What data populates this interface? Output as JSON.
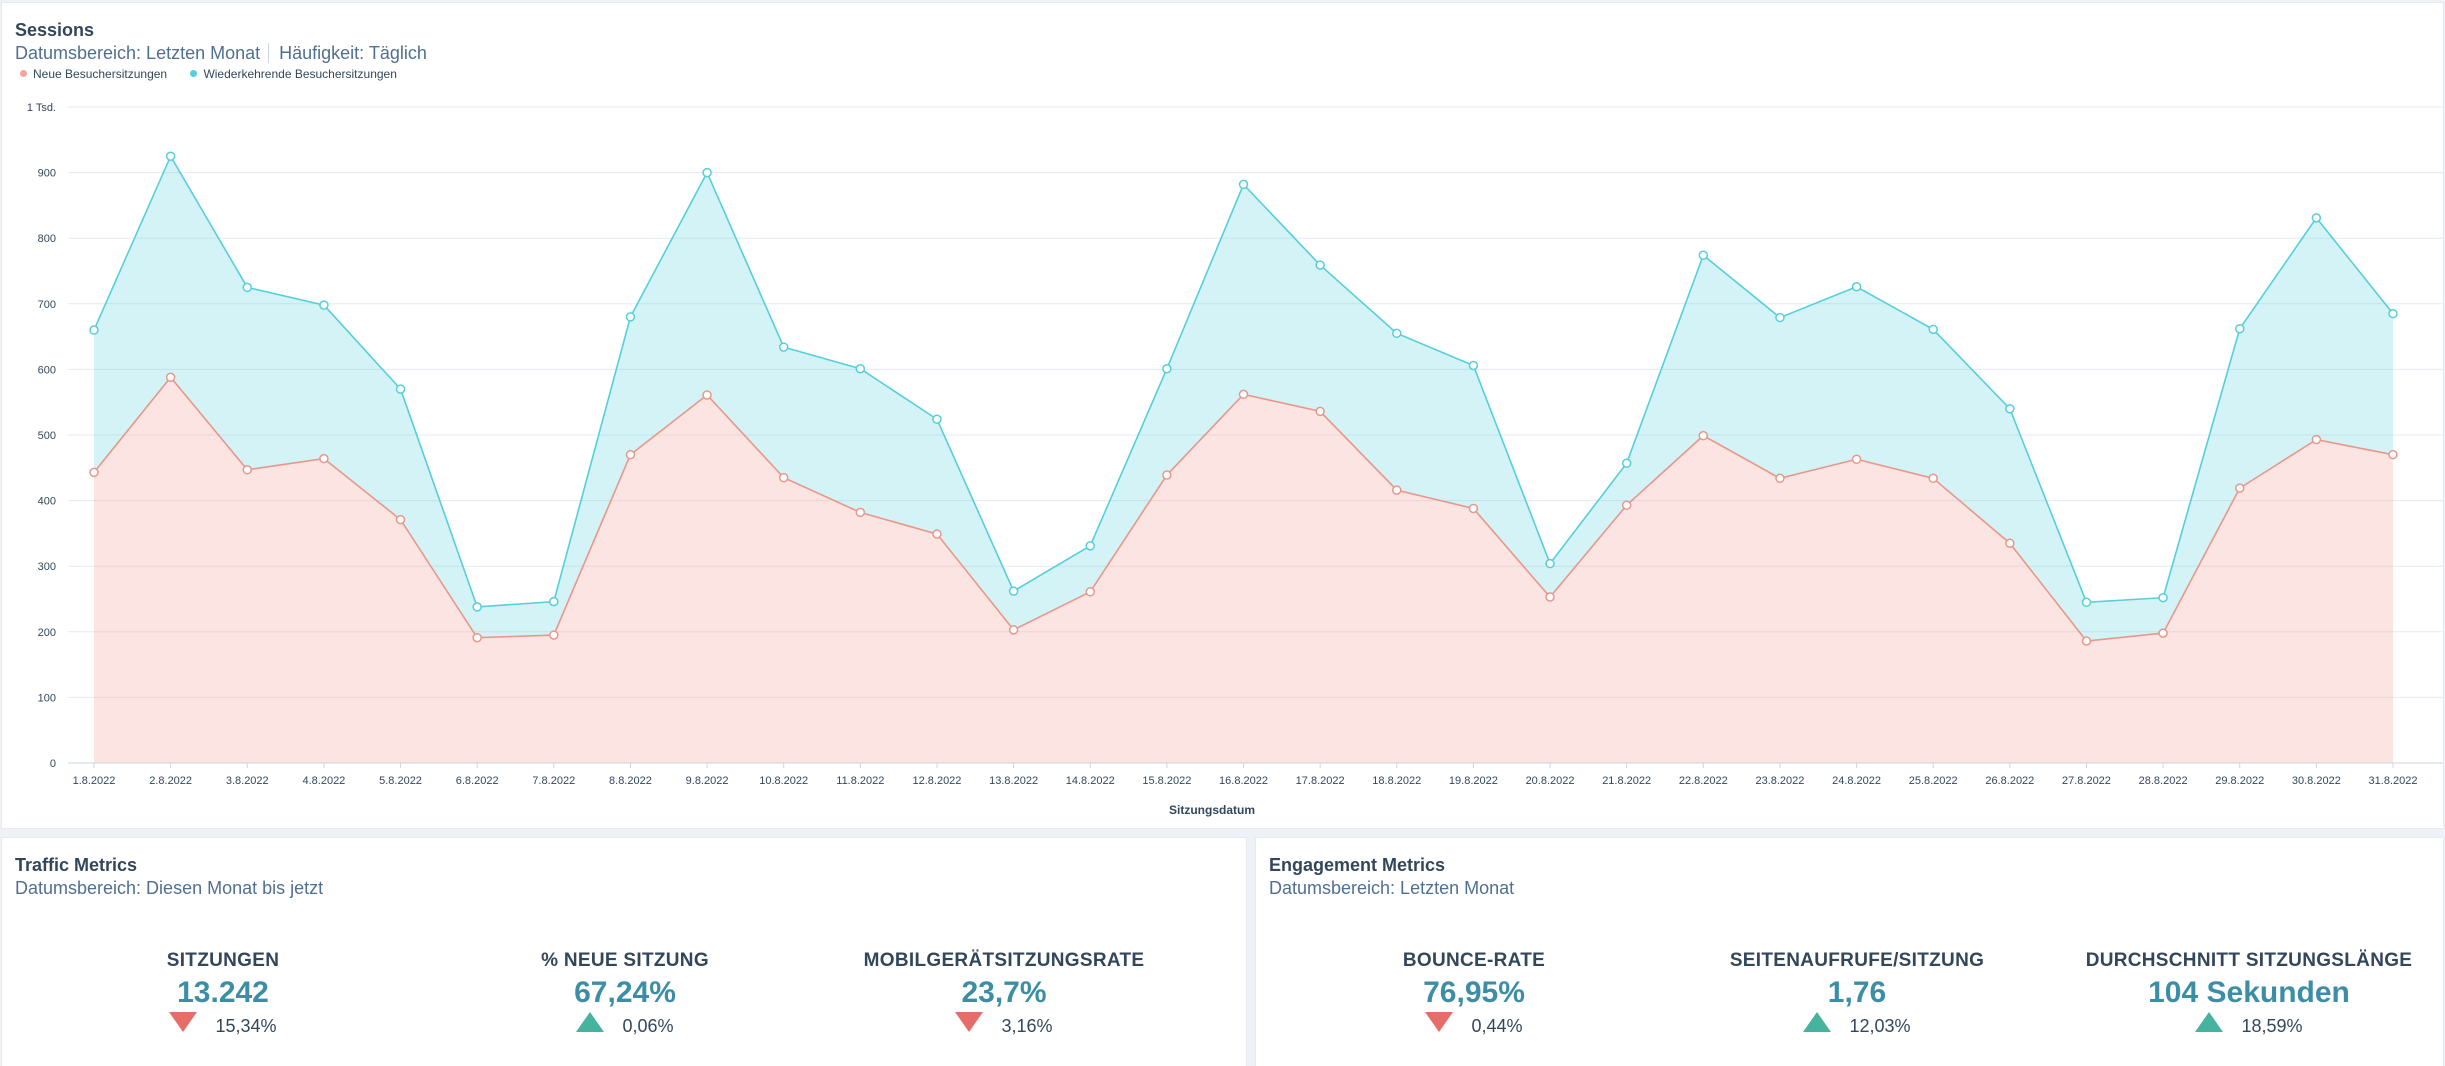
{
  "colors": {
    "new": "#f2a79c",
    "returning": "#55cfdb",
    "accent": "#3b8ea5",
    "down": "#e66e6a",
    "up": "#45b39d"
  },
  "sessions_card": {
    "title": "Sessions",
    "date_range": "Datumsbereich: Letzten Monat",
    "frequency": "Häufigkeit: Täglich"
  },
  "chart_data": {
    "type": "area",
    "stacked": true,
    "xlabel": "Sitzungsdatum",
    "ylabel": "",
    "ylim": [
      0,
      1000
    ],
    "yticks": [
      0,
      100,
      200,
      300,
      400,
      500,
      600,
      700,
      800,
      900,
      1000
    ],
    "ytick_labels": [
      "0",
      "100",
      "200",
      "300",
      "400",
      "500",
      "600",
      "700",
      "800",
      "900",
      "1 Tsd."
    ],
    "grid": true,
    "legend_position": "top-left",
    "categories": [
      "1.8.2022",
      "2.8.2022",
      "3.8.2022",
      "4.8.2022",
      "5.8.2022",
      "6.8.2022",
      "7.8.2022",
      "8.8.2022",
      "9.8.2022",
      "10.8.2022",
      "11.8.2022",
      "12.8.2022",
      "13.8.2022",
      "14.8.2022",
      "15.8.2022",
      "16.8.2022",
      "17.8.2022",
      "18.8.2022",
      "19.8.2022",
      "20.8.2022",
      "21.8.2022",
      "22.8.2022",
      "23.8.2022",
      "24.8.2022",
      "25.8.2022",
      "26.8.2022",
      "27.8.2022",
      "28.8.2022",
      "29.8.2022",
      "30.8.2022",
      "31.8.2022"
    ],
    "series": [
      {
        "name": "Neue Besuchersitzungen",
        "values": [
          443,
          588,
          447,
          464,
          371,
          191,
          195,
          470,
          561,
          435,
          382,
          349,
          203,
          261,
          439,
          562,
          536,
          416,
          388,
          253,
          393,
          499,
          434,
          463,
          434,
          335,
          186,
          198,
          419,
          493,
          470
        ]
      },
      {
        "name": "Wiederkehrende Besuchersitzungen",
        "cumulative_values": [
          660,
          925,
          725,
          698,
          570,
          238,
          246,
          680,
          900,
          634,
          601,
          524,
          262,
          331,
          601,
          882,
          759,
          655,
          606,
          304,
          457,
          774,
          679,
          726,
          661,
          540,
          245,
          252,
          662,
          831,
          685
        ]
      }
    ]
  },
  "traffic_card": {
    "title": "Traffic Metrics",
    "date_range": "Datumsbereich: Diesen Monat bis jetzt",
    "metrics": [
      {
        "label": "Sitzungen",
        "value": "13.242",
        "change": "15,34%",
        "direction": "down"
      },
      {
        "label": "% neue Sitzung",
        "value": "67,24%",
        "change": "0,06%",
        "direction": "up"
      },
      {
        "label": "Mobilgerätsitzungsrate",
        "value": "23,7%",
        "change": "3,16%",
        "direction": "down"
      }
    ]
  },
  "engagement_card": {
    "title": "Engagement Metrics",
    "date_range": "Datumsbereich: Letzten Monat",
    "metrics": [
      {
        "label": "Bounce-Rate",
        "value": "76,95%",
        "change": "0,44%",
        "direction": "down"
      },
      {
        "label": "Seitenaufrufe/Sitzung",
        "value": "1,76",
        "change": "12,03%",
        "direction": "up"
      },
      {
        "label": "Durchschnitt Sitzungslänge",
        "value": "104 Sekunden",
        "change": "18,59%",
        "direction": "up"
      }
    ]
  }
}
